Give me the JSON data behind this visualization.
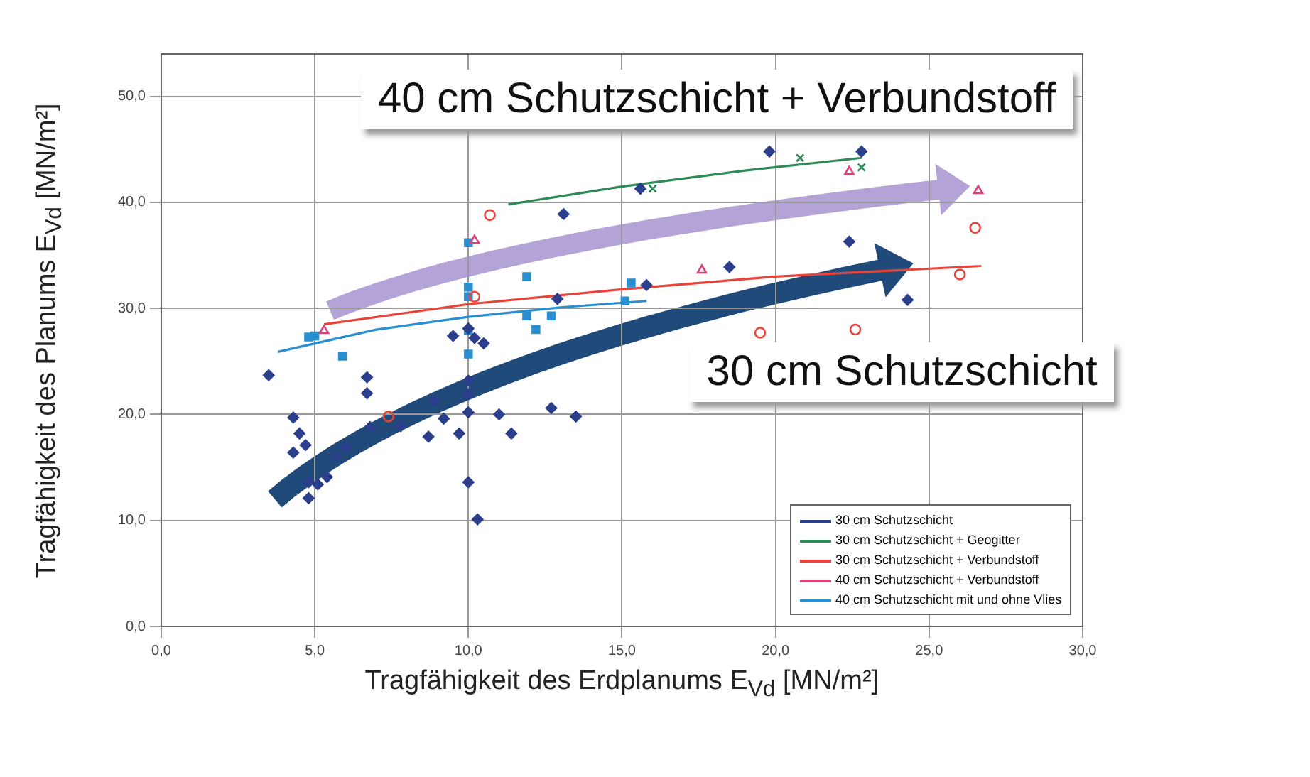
{
  "chart_data": {
    "type": "scatter",
    "xlabel": "Tragfähigkeit des Erdplanums E$_{Vd}$ [MN/m²]",
    "ylabel": "Tragfähigkeit des Planums E$_{Vd}$ [MN/m²]",
    "xlim": [
      0,
      30
    ],
    "ylim": [
      0,
      54
    ],
    "xticks": [
      {
        "value": 0,
        "label": "0,0"
      },
      {
        "value": 5,
        "label": "5,0"
      },
      {
        "value": 10,
        "label": "10,0"
      },
      {
        "value": 15,
        "label": "15,0"
      },
      {
        "value": 20,
        "label": "20,0"
      },
      {
        "value": 25,
        "label": "25,0"
      },
      {
        "value": 30,
        "label": "30,0"
      }
    ],
    "yticks": [
      {
        "value": 0,
        "label": "0,0"
      },
      {
        "value": 10,
        "label": "10,0"
      },
      {
        "value": 20,
        "label": "20,0"
      },
      {
        "value": 30,
        "label": "30,0"
      },
      {
        "value": 40,
        "label": "40,0"
      },
      {
        "value": 50,
        "label": "50,0"
      }
    ],
    "grid": true,
    "legend": "bottom right",
    "annotations": [
      "40 cm Schutzschicht + Verbundstoff",
      "30 cm Schutzschicht"
    ],
    "series": [
      {
        "name": "30 cm Schutzschicht",
        "color": "#2b3f8c",
        "marker": "diamond",
        "x": [
          3.5,
          4.3,
          4.5,
          4.7,
          4.3,
          4.8,
          5.1,
          4.8,
          5.4,
          5.7,
          6.0,
          6.7,
          6.7,
          6.8,
          7.8,
          8.7,
          8.9,
          9.2,
          9.5,
          9.7,
          10.0,
          10.0,
          10.0,
          10.0,
          10.3,
          11.0,
          11.4,
          12.7,
          13.1,
          12.9,
          10.0,
          10.2,
          10.5,
          19.8,
          22.8,
          18.5,
          22.4,
          24.3,
          15.8,
          13.5,
          15.6
        ],
        "values": [
          23.7,
          19.7,
          18.2,
          17.1,
          16.4,
          13.6,
          13.4,
          12.1,
          14.1,
          16.0,
          16.9,
          23.5,
          22.0,
          18.8,
          18.9,
          17.9,
          21.3,
          19.6,
          27.4,
          18.2,
          20.2,
          23.2,
          21.9,
          13.6,
          10.1,
          20.0,
          18.2,
          20.6,
          38.9,
          30.9,
          28.1,
          27.2,
          26.7,
          44.8,
          44.8,
          33.9,
          36.3,
          30.8,
          32.2,
          19.8,
          41.3
        ]
      },
      {
        "name": "30 cm Schutzschicht + Geogitter",
        "color": "#2e8b57",
        "marker": "cross",
        "x": [
          16.0,
          20.8,
          22.8
        ],
        "values": [
          41.3,
          44.2,
          43.3
        ]
      },
      {
        "name": "30 cm Schutzschicht + Verbundstoff",
        "color": "#e8443a",
        "marker": "circle",
        "x": [
          19.5,
          22.6,
          26.0,
          26.5,
          10.7,
          10.2,
          7.4
        ],
        "values": [
          27.7,
          28.0,
          33.2,
          37.6,
          38.8,
          31.1,
          19.8
        ]
      },
      {
        "name": "40 cm Schutzschicht + Verbundstoff",
        "color": "#e0407a",
        "marker": "triangle",
        "x": [
          10.2,
          5.3,
          17.6,
          22.4,
          26.6
        ],
        "values": [
          36.4,
          27.9,
          33.6,
          42.9,
          41.1
        ]
      },
      {
        "name": "40 cm Schutzschicht mit und ohne Vlies",
        "color": "#2a8fd0",
        "marker": "square",
        "x": [
          4.8,
          5.0,
          5.9,
          10.0,
          10.0,
          10.0,
          10.0,
          10.0,
          11.9,
          11.9,
          12.7,
          12.2,
          15.3,
          15.1
        ],
        "values": [
          27.3,
          27.4,
          25.5,
          36.2,
          32.0,
          31.1,
          25.7,
          27.9,
          33.0,
          29.3,
          29.3,
          28.0,
          32.4,
          30.7
        ]
      },
      {
        "type": "line",
        "color": "#2e8b57",
        "marker": "none",
        "x": [
          11.3,
          15,
          19,
          22.8
        ],
        "values": [
          39.8,
          41.5,
          43,
          44.2
        ]
      },
      {
        "type": "line",
        "color": "#e8443a",
        "marker": "none",
        "x": [
          5.3,
          10,
          15,
          20,
          26.7
        ],
        "values": [
          28.5,
          30.4,
          31.8,
          33,
          34
        ]
      },
      {
        "type": "line",
        "color": "#2a8fd0",
        "marker": "none",
        "x": [
          3.8,
          7,
          10,
          13,
          15.8
        ],
        "values": [
          25.9,
          28,
          29.2,
          30.1,
          30.7
        ]
      }
    ]
  }
}
